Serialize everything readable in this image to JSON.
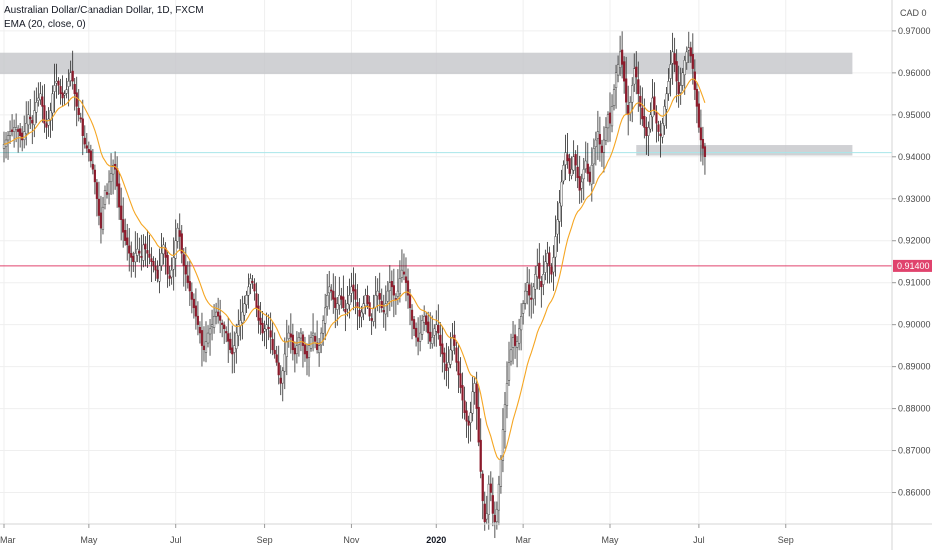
{
  "legend": {
    "symbol": "Australian Dollar/Canadian Dollar, 1D, FXCM",
    "indicator": "EMA (20, close, 0)"
  },
  "price_scale": {
    "currency": "CAD",
    "extra": "0"
  },
  "colors": {
    "up_candle": "#f2f2f2",
    "down_candle": "#8b1a2b",
    "wick": "#2a2a2a",
    "ema": "#f5a623",
    "hline_red": "#e0436d",
    "hline_cyan": "#a8e6ea",
    "zone": "#c4c5c9",
    "grid": "#efefef"
  },
  "chart_data": {
    "type": "candlestick",
    "title": "Australian Dollar/Canadian Dollar, 1D, FXCM",
    "ylim": [
      0.8525,
      0.975
    ],
    "y_ticks": [
      0.86,
      0.87,
      0.88,
      0.89,
      0.9,
      0.91,
      0.92,
      0.93,
      0.94,
      0.95,
      0.96,
      0.97
    ],
    "y_tick_labels": [
      "0.86000",
      "0.87000",
      "0.88000",
      "0.89000",
      "0.90000",
      "0.91000",
      "0.92000",
      "0.93000",
      "0.94000",
      "0.95000",
      "0.96000",
      "0.97000"
    ],
    "x_ticks": [
      {
        "label": "Mar",
        "i": 0,
        "bold": false
      },
      {
        "label": "May",
        "i": 42,
        "bold": false
      },
      {
        "label": "Jul",
        "i": 85,
        "bold": false
      },
      {
        "label": "Sep",
        "i": 129,
        "bold": false
      },
      {
        "label": "Nov",
        "i": 172,
        "bold": false
      },
      {
        "label": "2020",
        "i": 214,
        "bold": true
      },
      {
        "label": "Mar",
        "i": 257,
        "bold": false
      },
      {
        "label": "May",
        "i": 300,
        "bold": false
      },
      {
        "label": "Jul",
        "i": 344,
        "bold": false
      },
      {
        "label": "Sep",
        "i": 387,
        "bold": false
      }
    ],
    "current_price_label": "0.91400",
    "horizontal_lines": [
      {
        "name": "support-red",
        "price": 0.914
      },
      {
        "name": "support-cyan",
        "price": 0.941
      }
    ],
    "zones": [
      {
        "name": "resistance-zone",
        "from_i": -2,
        "to_i": 420,
        "low": 0.9597,
        "high": 0.9648
      },
      {
        "name": "support-zone",
        "from_i": 313,
        "to_i": 420,
        "low": 0.9403,
        "high": 0.9428
      }
    ],
    "closes": [
      0.943,
      0.944,
      0.945,
      0.946,
      0.946,
      0.947,
      0.947,
      0.946,
      0.945,
      0.944,
      0.946,
      0.948,
      0.95,
      0.949,
      0.948,
      0.951,
      0.953,
      0.954,
      0.955,
      0.952,
      0.948,
      0.947,
      0.949,
      0.951,
      0.955,
      0.957,
      0.958,
      0.957,
      0.955,
      0.954,
      0.955,
      0.956,
      0.958,
      0.96,
      0.958,
      0.955,
      0.952,
      0.95,
      0.949,
      0.945,
      0.943,
      0.942,
      0.941,
      0.939,
      0.937,
      0.934,
      0.93,
      0.926,
      0.923,
      0.928,
      0.932,
      0.931,
      0.934,
      0.936,
      0.938,
      0.937,
      0.933,
      0.928,
      0.925,
      0.922,
      0.92,
      0.919,
      0.917,
      0.916,
      0.915,
      0.917,
      0.918,
      0.917,
      0.916,
      0.919,
      0.918,
      0.917,
      0.916,
      0.915,
      0.914,
      0.913,
      0.911,
      0.914,
      0.917,
      0.919,
      0.916,
      0.912,
      0.911,
      0.913,
      0.916,
      0.92,
      0.923,
      0.921,
      0.917,
      0.914,
      0.912,
      0.91,
      0.908,
      0.906,
      0.904,
      0.902,
      0.9,
      0.898,
      0.895,
      0.894,
      0.896,
      0.898,
      0.899,
      0.9,
      0.902,
      0.903,
      0.902,
      0.901,
      0.9,
      0.899,
      0.898,
      0.896,
      0.894,
      0.893,
      0.895,
      0.898,
      0.9,
      0.901,
      0.903,
      0.905,
      0.907,
      0.909,
      0.911,
      0.91,
      0.908,
      0.904,
      0.901,
      0.9,
      0.898,
      0.899,
      0.9,
      0.899,
      0.897,
      0.894,
      0.893,
      0.891,
      0.888,
      0.886,
      0.889,
      0.893,
      0.896,
      0.898,
      0.897,
      0.894,
      0.893,
      0.895,
      0.897,
      0.898,
      0.895,
      0.893,
      0.892,
      0.895,
      0.897,
      0.898,
      0.896,
      0.894,
      0.895,
      0.898,
      0.901,
      0.904,
      0.907,
      0.909,
      0.908,
      0.906,
      0.904,
      0.905,
      0.907,
      0.906,
      0.904,
      0.903,
      0.905,
      0.907,
      0.909,
      0.908,
      0.906,
      0.904,
      0.902,
      0.903,
      0.905,
      0.907,
      0.905,
      0.902,
      0.901,
      0.904,
      0.907,
      0.908,
      0.906,
      0.904,
      0.903,
      0.905,
      0.908,
      0.91,
      0.909,
      0.907,
      0.906,
      0.908,
      0.911,
      0.913,
      0.912,
      0.91,
      0.907,
      0.904,
      0.901,
      0.899,
      0.897,
      0.896,
      0.898,
      0.901,
      0.902,
      0.9,
      0.898,
      0.896,
      0.897,
      0.899,
      0.9,
      0.898,
      0.895,
      0.893,
      0.891,
      0.889,
      0.891,
      0.894,
      0.897,
      0.895,
      0.891,
      0.888,
      0.885,
      0.882,
      0.879,
      0.877,
      0.876,
      0.879,
      0.884,
      0.886,
      0.88,
      0.872,
      0.865,
      0.858,
      0.853,
      0.855,
      0.862,
      0.86,
      0.855,
      0.853,
      0.856,
      0.862,
      0.868,
      0.875,
      0.881,
      0.886,
      0.891,
      0.894,
      0.897,
      0.895,
      0.896,
      0.899,
      0.902,
      0.905,
      0.908,
      0.91,
      0.907,
      0.906,
      0.909,
      0.912,
      0.914,
      0.911,
      0.909,
      0.912,
      0.915,
      0.917,
      0.914,
      0.912,
      0.916,
      0.921,
      0.925,
      0.929,
      0.934,
      0.938,
      0.941,
      0.939,
      0.936,
      0.937,
      0.94,
      0.938,
      0.935,
      0.932,
      0.934,
      0.937,
      0.939,
      0.936,
      0.934,
      0.938,
      0.942,
      0.944,
      0.946,
      0.943,
      0.941,
      0.944,
      0.947,
      0.95,
      0.948,
      0.952,
      0.956,
      0.96,
      0.962,
      0.965,
      0.962,
      0.958,
      0.953,
      0.95,
      0.953,
      0.957,
      0.961,
      0.959,
      0.955,
      0.952,
      0.949,
      0.947,
      0.945,
      0.947,
      0.95,
      0.954,
      0.951,
      0.948,
      0.946,
      0.945,
      0.948,
      0.952,
      0.955,
      0.958,
      0.962,
      0.965,
      0.962,
      0.958,
      0.955,
      0.957,
      0.96,
      0.963,
      0.965,
      0.966,
      0.964,
      0.961,
      0.956,
      0.952,
      0.947,
      0.944,
      0.942,
      0.94
    ]
  }
}
